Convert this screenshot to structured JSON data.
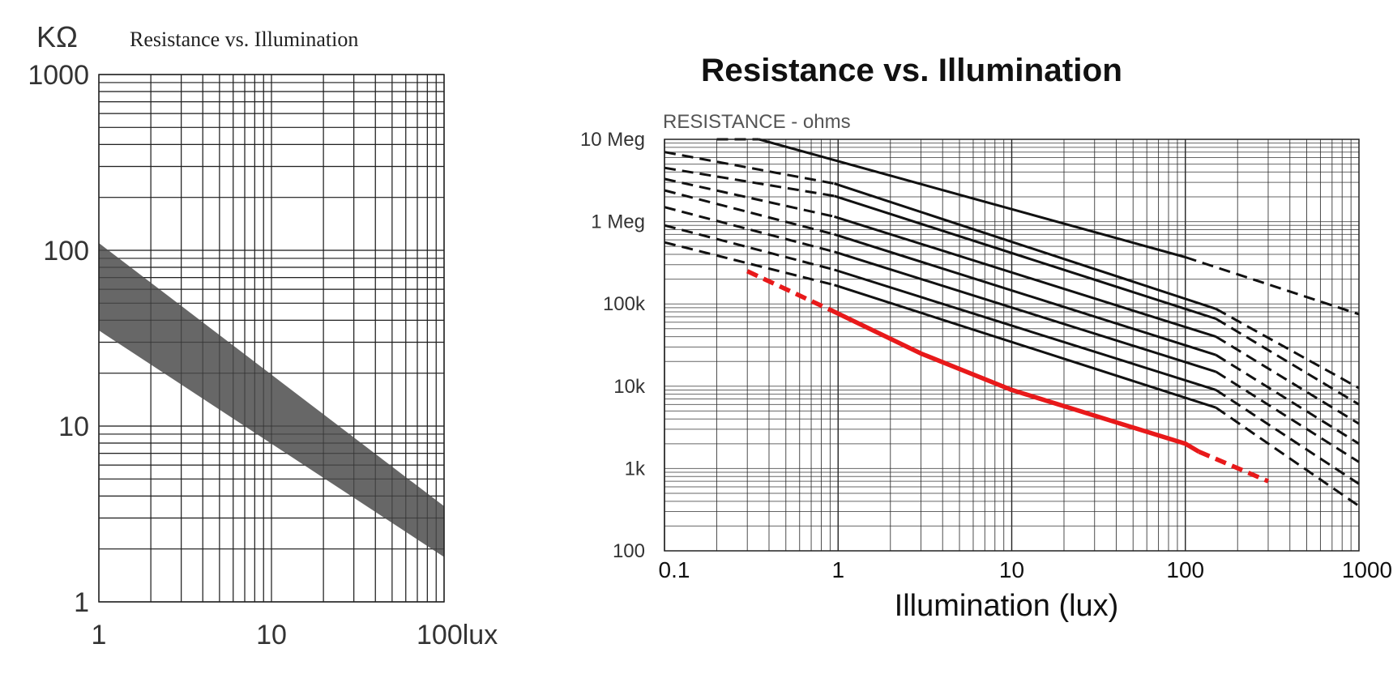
{
  "chart_data": [
    {
      "type": "area",
      "title": "Resistance vs. Illumination",
      "ylabel": "KΩ",
      "xlabel": "",
      "xscale": "log",
      "yscale": "log",
      "xlim": [
        1,
        100
      ],
      "ylim": [
        1,
        1000
      ],
      "grid": true,
      "x_ticks": [
        "1",
        "10",
        "100lux"
      ],
      "y_ticks": [
        "1",
        "10",
        "100",
        "1000"
      ],
      "band_color": "#5a5a5a",
      "series": [
        {
          "x": [
            1,
            100
          ],
          "upper": [
            110,
            3.5
          ],
          "lower": [
            35,
            1.8
          ]
        }
      ]
    },
    {
      "type": "line",
      "title": "Resistance vs. Illumination",
      "ylabel": "RESISTANCE - ohms",
      "xlabel": "Illumination (lux)",
      "xscale": "log",
      "yscale": "log",
      "xlim": [
        0.1,
        1000
      ],
      "ylim": [
        100,
        10000000
      ],
      "grid": true,
      "x_ticks": [
        "0.1",
        "1",
        "10",
        "100",
        "1000"
      ],
      "y_ticks": [
        "10 Meg",
        "1 Meg",
        "100k",
        "10k",
        "1k",
        "100"
      ],
      "highlight_color": "#e8191a",
      "series": [
        {
          "solid": [
            [
              0.35,
              10000000
            ],
            [
              100,
              370000
            ]
          ],
          "dashed_left": [
            [
              0.2,
              10000000
            ],
            [
              0.35,
              10000000
            ]
          ],
          "dashed_right": [
            [
              100,
              370000
            ],
            [
              1000,
              75000
            ]
          ]
        },
        {
          "solid": [
            [
              0.95,
              2900000
            ],
            [
              150,
              87000
            ]
          ],
          "dashed_left": [
            [
              0.1,
              7000000
            ],
            [
              0.95,
              2900000
            ]
          ],
          "dashed_right": [
            [
              150,
              87000
            ],
            [
              1000,
              9500
            ]
          ]
        },
        {
          "solid": [
            [
              0.95,
              2050000
            ],
            [
              150,
              66000
            ]
          ],
          "dashed_left": [
            [
              0.1,
              4500000
            ],
            [
              0.95,
              2050000
            ]
          ],
          "dashed_right": [
            [
              150,
              66000
            ],
            [
              1000,
              6000
            ]
          ]
        },
        {
          "solid": [
            [
              0.95,
              1150000
            ],
            [
              150,
              40000
            ]
          ],
          "dashed_left": [
            [
              0.1,
              3300000
            ],
            [
              0.95,
              1150000
            ]
          ],
          "dashed_right": [
            [
              150,
              40000
            ],
            [
              1000,
              3500
            ]
          ]
        },
        {
          "solid": [
            [
              0.95,
              700000
            ],
            [
              150,
              24000
            ]
          ],
          "dashed_left": [
            [
              0.1,
              2400000
            ],
            [
              0.95,
              700000
            ]
          ],
          "dashed_right": [
            [
              150,
              24000
            ],
            [
              1000,
              2000
            ]
          ]
        },
        {
          "solid": [
            [
              0.95,
              430000
            ],
            [
              150,
              15000
            ]
          ],
          "dashed_left": [
            [
              0.1,
              1500000
            ],
            [
              0.95,
              430000
            ]
          ],
          "dashed_right": [
            [
              150,
              15000
            ],
            [
              1000,
              1200
            ]
          ]
        },
        {
          "solid": [
            [
              0.95,
              260000
            ],
            [
              150,
              9000
            ]
          ],
          "dashed_left": [
            [
              0.1,
              900000
            ],
            [
              0.95,
              260000
            ]
          ],
          "dashed_right": [
            [
              150,
              9000
            ],
            [
              1000,
              650
            ]
          ]
        },
        {
          "solid": [
            [
              0.95,
              170000
            ],
            [
              150,
              5500
            ]
          ],
          "dashed_left": [
            [
              0.1,
              560000
            ],
            [
              0.95,
              170000
            ]
          ],
          "dashed_right": [
            [
              150,
              5500
            ],
            [
              1000,
              350
            ]
          ]
        },
        {
          "highlight": true,
          "solid": [
            [
              0.9,
              85000
            ],
            [
              3,
              25000
            ],
            [
              10,
              9000
            ],
            [
              100,
              2000
            ],
            [
              120,
              1600
            ]
          ],
          "dashed_left": [
            [
              0.3,
              250000
            ],
            [
              0.9,
              85000
            ]
          ],
          "dashed_right": [
            [
              120,
              1600
            ],
            [
              300,
              700
            ]
          ]
        }
      ]
    }
  ]
}
